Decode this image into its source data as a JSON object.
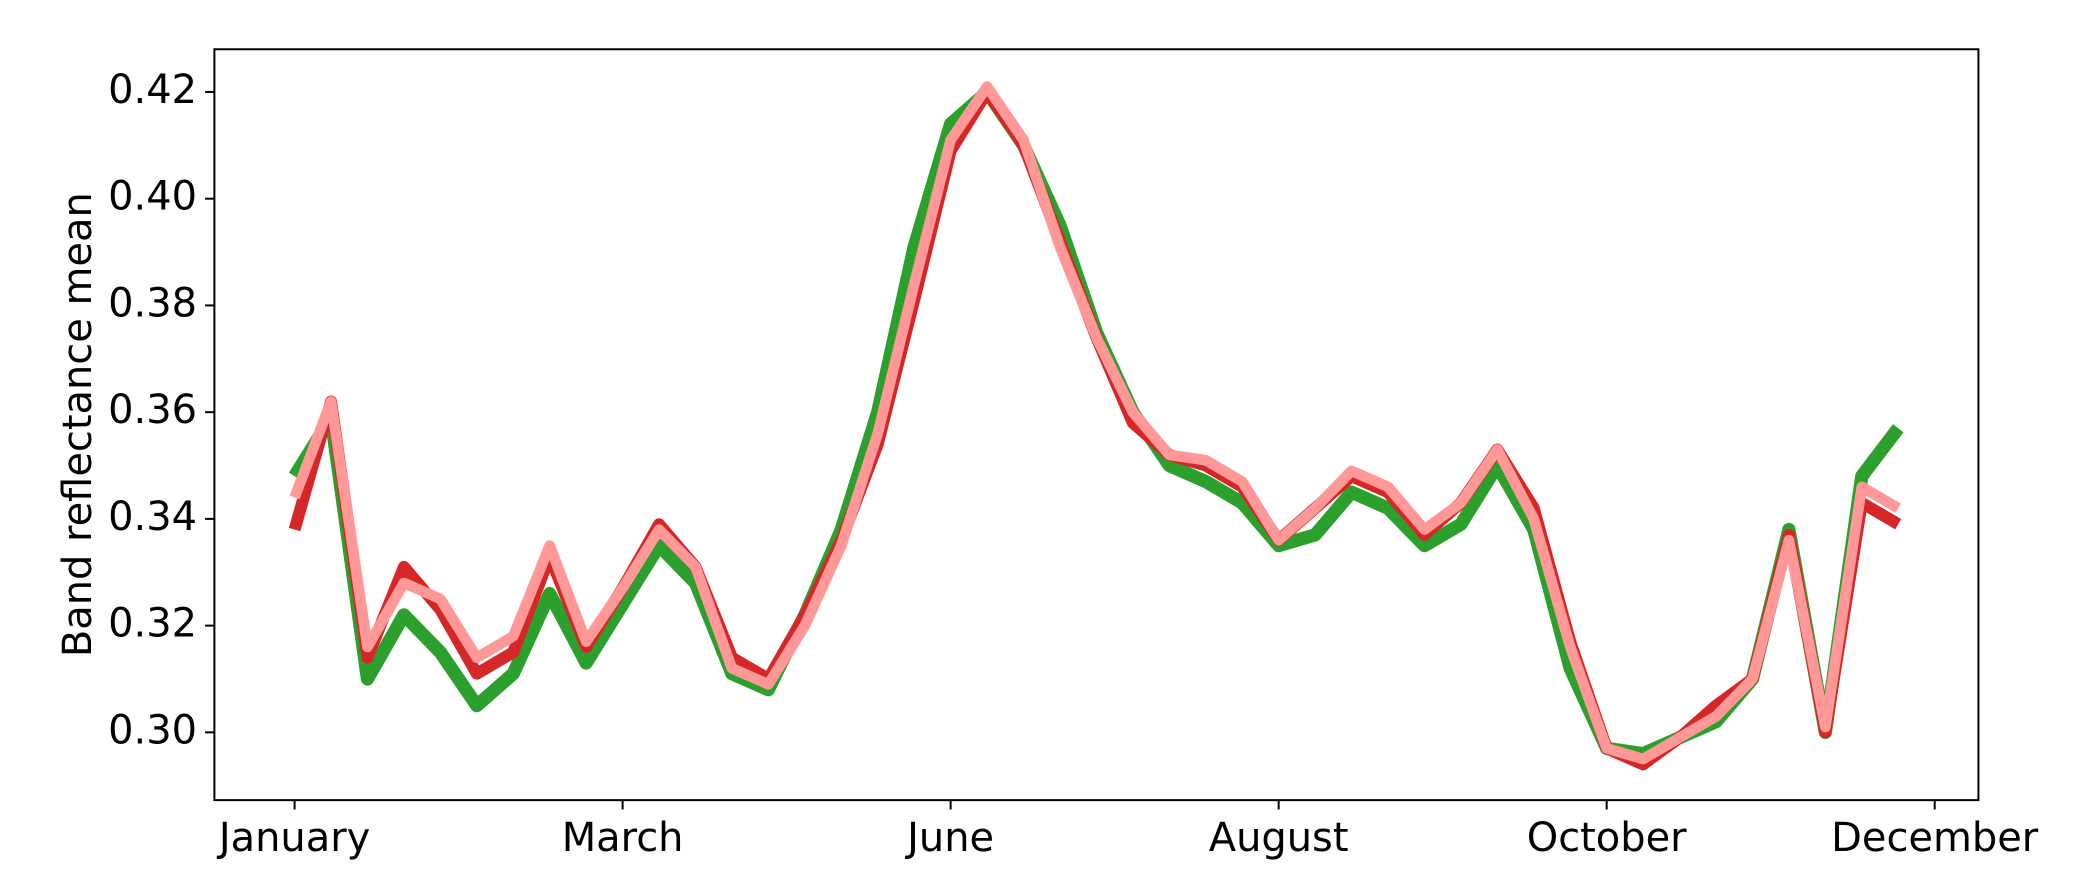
{
  "chart_data": {
    "type": "line",
    "ylabel": "Band reflectance mean",
    "x": [
      0,
      1,
      2,
      3,
      4,
      5,
      6,
      7,
      8,
      9,
      10,
      11,
      12,
      13,
      14,
      15,
      16,
      17,
      18,
      19,
      20,
      21,
      22,
      23,
      24,
      25,
      26,
      27,
      28,
      29,
      30,
      31,
      32,
      33,
      34,
      35,
      36,
      37,
      38,
      39,
      40,
      41,
      42,
      43,
      44
    ],
    "xlim": [
      -2.2,
      46.2
    ],
    "xticks": [
      {
        "value": 0,
        "label": "January"
      },
      {
        "value": 9,
        "label": "March"
      },
      {
        "value": 18,
        "label": "June"
      },
      {
        "value": 27,
        "label": "August"
      },
      {
        "value": 36,
        "label": "October"
      },
      {
        "value": 45,
        "label": "December"
      }
    ],
    "ylim": [
      0.2873,
      0.428
    ],
    "yticks": [
      {
        "value": 0.3,
        "label": "0.30"
      },
      0.32,
      0.34,
      0.36,
      0.38,
      {
        "value": 0.4,
        "label": "0.40"
      },
      0.42
    ],
    "grid": false,
    "series": [
      {
        "color": "#2ca02c",
        "values": [
          0.348,
          0.359,
          0.31,
          0.322,
          0.315,
          0.305,
          0.311,
          0.326,
          0.313,
          0.324,
          0.335,
          0.328,
          0.311,
          0.308,
          0.322,
          0.338,
          0.36,
          0.391,
          0.414,
          0.42,
          0.41,
          0.395,
          0.375,
          0.36,
          0.35,
          0.347,
          0.343,
          0.335,
          0.337,
          0.345,
          0.342,
          0.335,
          0.339,
          0.35,
          0.338,
          0.312,
          0.297,
          0.296,
          0.299,
          0.302,
          0.31,
          0.338,
          0.3,
          0.348,
          0.357
        ]
      },
      {
        "color": "#d62728",
        "values": [
          0.338,
          0.362,
          0.314,
          0.331,
          0.323,
          0.311,
          0.315,
          0.333,
          0.316,
          0.327,
          0.339,
          0.331,
          0.314,
          0.31,
          0.322,
          0.336,
          0.354,
          0.381,
          0.409,
          0.42,
          0.41,
          0.392,
          0.374,
          0.358,
          0.352,
          0.35,
          0.346,
          0.336,
          0.342,
          0.348,
          0.345,
          0.337,
          0.343,
          0.353,
          0.342,
          0.317,
          0.297,
          0.294,
          0.299,
          0.305,
          0.31,
          0.337,
          0.3,
          0.343,
          0.339
        ]
      },
      {
        "color": "#ff9896",
        "values": [
          0.344,
          0.362,
          0.316,
          0.328,
          0.325,
          0.314,
          0.318,
          0.335,
          0.317,
          0.327,
          0.338,
          0.331,
          0.312,
          0.309,
          0.32,
          0.335,
          0.356,
          0.384,
          0.411,
          0.421,
          0.411,
          0.391,
          0.374,
          0.36,
          0.352,
          0.351,
          0.347,
          0.336,
          0.342,
          0.349,
          0.346,
          0.338,
          0.343,
          0.353,
          0.34,
          0.316,
          0.297,
          0.295,
          0.299,
          0.303,
          0.31,
          0.336,
          0.301,
          0.346,
          0.342
        ]
      }
    ]
  }
}
